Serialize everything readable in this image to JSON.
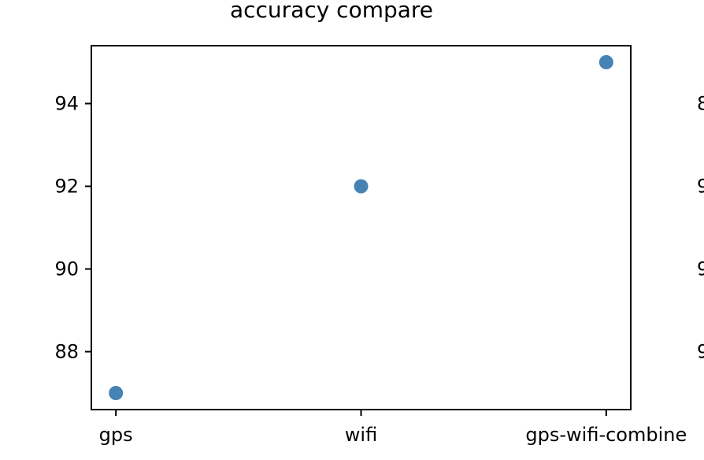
{
  "chart_data": {
    "type": "scatter",
    "title": "accuracy compare",
    "xlabel": "",
    "ylabel": "",
    "categories": [
      "gps",
      "wifi",
      "gps-wifi-combine"
    ],
    "values": [
      87,
      92,
      95
    ],
    "yticks": [
      88,
      90,
      92,
      94
    ],
    "ytick_labels": [
      "88",
      "90",
      "92",
      "94"
    ],
    "ylim": [
      86.6,
      95.4
    ],
    "grid": false,
    "marker_color": "#4682b4",
    "clipped_neighbor_ytick_fragments": [
      "9",
      "9",
      "9",
      "8"
    ]
  }
}
